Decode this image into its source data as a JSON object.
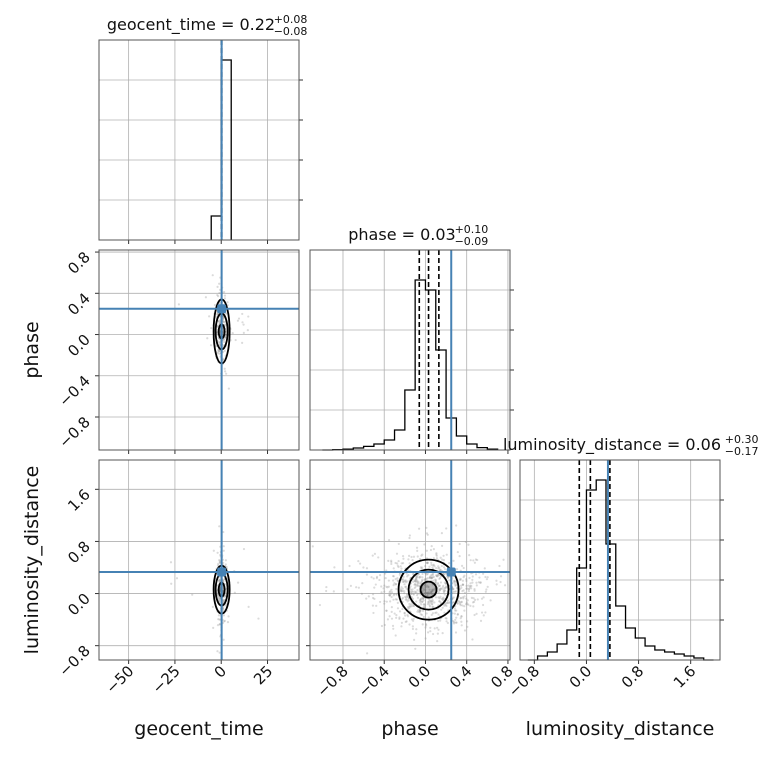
{
  "chart_data": {
    "type": "corner",
    "parameters": [
      "geocent_time",
      "phase",
      "luminosity_distance"
    ],
    "truth_color": "#4682b4",
    "grid": true,
    "titles": [
      {
        "text": "geocent_time = 0.22",
        "sup": "+0.08",
        "sub": "−0.08"
      },
      {
        "text": "phase = 0.03",
        "sup": "+0.10",
        "sub": "−0.09"
      },
      {
        "text": "luminosity_distance = 0.06",
        "sup": "+0.30",
        "sub": "−0.17"
      }
    ],
    "xlabels": [
      "geocent_time",
      "phase",
      "luminosity_distance"
    ],
    "ylabels": [
      "phase",
      "luminosity_distance"
    ],
    "ranges": {
      "geocent_time": [
        -66,
        42
      ],
      "phase": [
        -1.12,
        0.82
      ],
      "luminosity_distance": [
        -1.02,
        2.05
      ]
    },
    "ticks": {
      "geocent_time": {
        "values": [
          -50,
          -25,
          0,
          25
        ],
        "labels": [
          "−50",
          "−25",
          "0",
          "25"
        ]
      },
      "phase": {
        "values": [
          -0.8,
          -0.4,
          0.0,
          0.4,
          0.8
        ],
        "labels": [
          "−0.8",
          "−0.4",
          "0.0",
          "0.4",
          "0.8"
        ]
      },
      "luminosity_distance": {
        "values": [
          -0.8,
          0.0,
          0.8,
          1.6
        ],
        "labels": [
          "−0.8",
          "0.0",
          "0.8",
          "1.6"
        ]
      }
    },
    "truths": {
      "geocent_time": 0.22,
      "phase": 0.25,
      "luminosity_distance": 0.33
    },
    "quantiles": {
      "geocent_time": [
        0.14,
        0.22,
        0.3
      ],
      "phase": [
        -0.06,
        0.03,
        0.13
      ],
      "luminosity_distance": [
        -0.11,
        0.06,
        0.36
      ]
    },
    "histograms": {
      "geocent_time": {
        "edges": [
          -5.4,
          0.0,
          5.4
        ],
        "counts": [
          0.12,
          0.9
        ]
      },
      "phase": {
        "edges": [
          -1.0,
          -0.9,
          -0.8,
          -0.7,
          -0.6,
          -0.5,
          -0.4,
          -0.3,
          -0.2,
          -0.1,
          0.0,
          0.1,
          0.2,
          0.3,
          0.4,
          0.5,
          0.6,
          0.7
        ],
        "counts": [
          0.0,
          0.002,
          0.004,
          0.01,
          0.018,
          0.03,
          0.05,
          0.1,
          0.3,
          0.85,
          0.8,
          0.5,
          0.16,
          0.07,
          0.03,
          0.012,
          0.004
        ]
      },
      "luminosity_distance": {
        "edges": [
          -0.9,
          -0.75,
          -0.6,
          -0.45,
          -0.3,
          -0.15,
          0.0,
          0.15,
          0.3,
          0.45,
          0.6,
          0.75,
          0.9,
          1.05,
          1.2,
          1.35,
          1.5,
          1.65,
          1.8,
          1.95
        ],
        "counts": [
          0.0,
          0.02,
          0.04,
          0.08,
          0.15,
          0.46,
          0.85,
          0.9,
          0.58,
          0.27,
          0.16,
          0.11,
          0.07,
          0.05,
          0.04,
          0.03,
          0.02,
          0.01,
          0.0
        ]
      }
    }
  }
}
